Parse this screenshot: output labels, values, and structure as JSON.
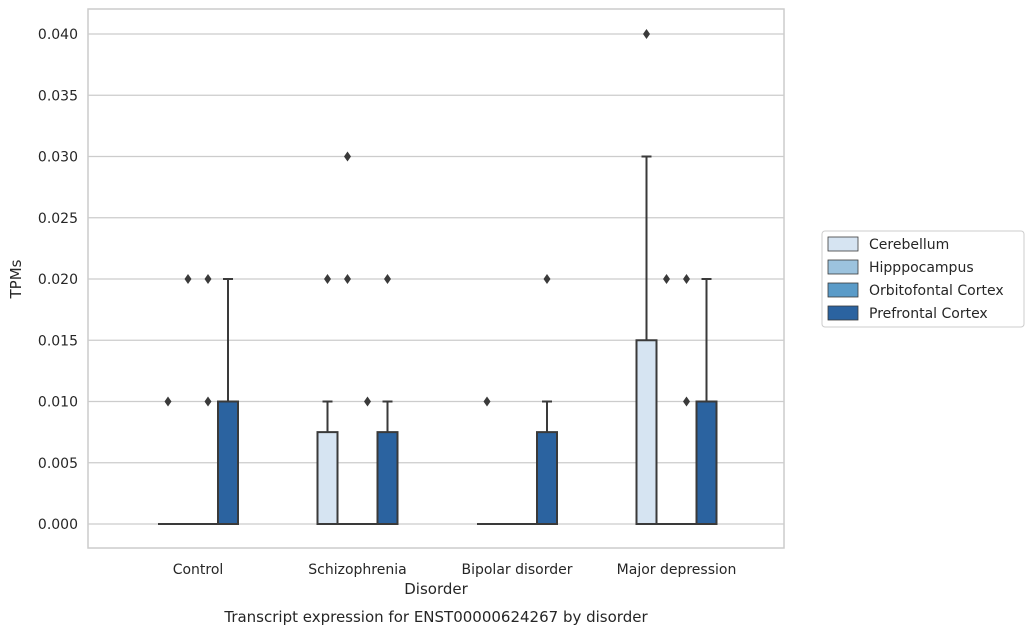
{
  "chart_data": {
    "type": "box",
    "caption": "Transcript expression for ENST00000624267 by disorder",
    "xlabel": "Disorder",
    "ylabel": "TPMs",
    "ylim": [
      -0.002,
      0.042
    ],
    "yticks": [
      "0.000",
      "0.005",
      "0.010",
      "0.015",
      "0.020",
      "0.025",
      "0.030",
      "0.035",
      "0.040"
    ],
    "grid": "horizontal",
    "legend_position": "right",
    "categories": [
      "Control",
      "Schizophrenia",
      "Bipolar disorder",
      "Major depression"
    ],
    "series": [
      {
        "name": "Cerebellum",
        "color": "#d6e4f2",
        "boxes": [
          {
            "q1": 0,
            "median": 0,
            "q3": 0,
            "whisker_low": 0,
            "whisker_high": 0,
            "outliers": [
              0.01
            ]
          },
          {
            "q1": 0,
            "median": 0,
            "q3": 0.0075,
            "whisker_low": 0,
            "whisker_high": 0.01,
            "outliers": [
              0.02
            ]
          },
          {
            "q1": 0,
            "median": 0,
            "q3": 0,
            "whisker_low": 0,
            "whisker_high": 0,
            "outliers": [
              0.01
            ]
          },
          {
            "q1": 0,
            "median": 0,
            "q3": 0.015,
            "whisker_low": 0,
            "whisker_high": 0.03,
            "outliers": [
              0.04
            ]
          }
        ]
      },
      {
        "name": "Hipppocampus",
        "color": "#9cc3de",
        "boxes": [
          {
            "q1": 0,
            "median": 0,
            "q3": 0,
            "whisker_low": 0,
            "whisker_high": 0,
            "outliers": [
              0.02
            ]
          },
          {
            "q1": 0,
            "median": 0,
            "q3": 0,
            "whisker_low": 0,
            "whisker_high": 0,
            "outliers": [
              0.02,
              0.03
            ]
          },
          {
            "q1": 0,
            "median": 0,
            "q3": 0,
            "whisker_low": 0,
            "whisker_high": 0,
            "outliers": []
          },
          {
            "q1": 0,
            "median": 0,
            "q3": 0,
            "whisker_low": 0,
            "whisker_high": 0,
            "outliers": [
              0.02
            ]
          }
        ]
      },
      {
        "name": "Orbitofontal Cortex",
        "color": "#5a9bc8",
        "boxes": [
          {
            "q1": 0,
            "median": 0,
            "q3": 0,
            "whisker_low": 0,
            "whisker_high": 0,
            "outliers": [
              0.01,
              0.02
            ]
          },
          {
            "q1": 0,
            "median": 0,
            "q3": 0,
            "whisker_low": 0,
            "whisker_high": 0,
            "outliers": [
              0.01
            ]
          },
          {
            "q1": 0,
            "median": 0,
            "q3": 0,
            "whisker_low": 0,
            "whisker_high": 0,
            "outliers": []
          },
          {
            "q1": 0,
            "median": 0,
            "q3": 0,
            "whisker_low": 0,
            "whisker_high": 0,
            "outliers": [
              0.01,
              0.02
            ]
          }
        ]
      },
      {
        "name": "Prefrontal Cortex",
        "color": "#2b63a0",
        "boxes": [
          {
            "q1": 0,
            "median": 0,
            "q3": 0.01,
            "whisker_low": 0,
            "whisker_high": 0.02,
            "outliers": []
          },
          {
            "q1": 0,
            "median": 0,
            "q3": 0.0075,
            "whisker_low": 0,
            "whisker_high": 0.01,
            "outliers": [
              0.02
            ]
          },
          {
            "q1": 0,
            "median": 0,
            "q3": 0.0075,
            "whisker_low": 0,
            "whisker_high": 0.01,
            "outliers": [
              0.02
            ]
          },
          {
            "q1": 0,
            "median": 0,
            "q3": 0.01,
            "whisker_low": 0,
            "whisker_high": 0.02,
            "outliers": []
          }
        ]
      }
    ]
  }
}
